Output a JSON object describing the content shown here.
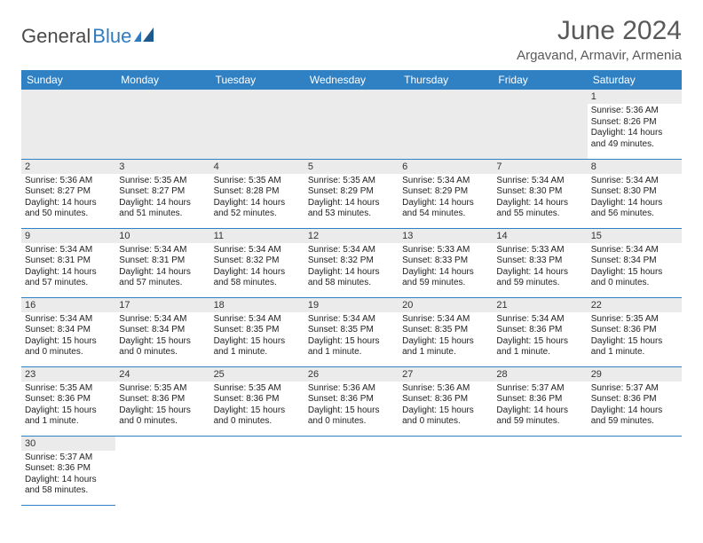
{
  "logo": {
    "dark": "General",
    "blue": "Blue"
  },
  "title": "June 2024",
  "location": "Argavand, Armavir, Armenia",
  "colors": {
    "header_bg": "#3081c3",
    "header_text": "#ffffff",
    "daynum_bg": "#ebebeb",
    "border": "#3081c3",
    "title_color": "#595959",
    "logo_blue": "#2f7bbf",
    "logo_dark": "#4a4a4a"
  },
  "day_headers": [
    "Sunday",
    "Monday",
    "Tuesday",
    "Wednesday",
    "Thursday",
    "Friday",
    "Saturday"
  ],
  "weeks": [
    [
      null,
      null,
      null,
      null,
      null,
      null,
      {
        "n": "1",
        "sr": "5:36 AM",
        "ss": "8:26 PM",
        "dl": "14 hours and 49 minutes."
      }
    ],
    [
      {
        "n": "2",
        "sr": "5:36 AM",
        "ss": "8:27 PM",
        "dl": "14 hours and 50 minutes."
      },
      {
        "n": "3",
        "sr": "5:35 AM",
        "ss": "8:27 PM",
        "dl": "14 hours and 51 minutes."
      },
      {
        "n": "4",
        "sr": "5:35 AM",
        "ss": "8:28 PM",
        "dl": "14 hours and 52 minutes."
      },
      {
        "n": "5",
        "sr": "5:35 AM",
        "ss": "8:29 PM",
        "dl": "14 hours and 53 minutes."
      },
      {
        "n": "6",
        "sr": "5:34 AM",
        "ss": "8:29 PM",
        "dl": "14 hours and 54 minutes."
      },
      {
        "n": "7",
        "sr": "5:34 AM",
        "ss": "8:30 PM",
        "dl": "14 hours and 55 minutes."
      },
      {
        "n": "8",
        "sr": "5:34 AM",
        "ss": "8:30 PM",
        "dl": "14 hours and 56 minutes."
      }
    ],
    [
      {
        "n": "9",
        "sr": "5:34 AM",
        "ss": "8:31 PM",
        "dl": "14 hours and 57 minutes."
      },
      {
        "n": "10",
        "sr": "5:34 AM",
        "ss": "8:31 PM",
        "dl": "14 hours and 57 minutes."
      },
      {
        "n": "11",
        "sr": "5:34 AM",
        "ss": "8:32 PM",
        "dl": "14 hours and 58 minutes."
      },
      {
        "n": "12",
        "sr": "5:34 AM",
        "ss": "8:32 PM",
        "dl": "14 hours and 58 minutes."
      },
      {
        "n": "13",
        "sr": "5:33 AM",
        "ss": "8:33 PM",
        "dl": "14 hours and 59 minutes."
      },
      {
        "n": "14",
        "sr": "5:33 AM",
        "ss": "8:33 PM",
        "dl": "14 hours and 59 minutes."
      },
      {
        "n": "15",
        "sr": "5:34 AM",
        "ss": "8:34 PM",
        "dl": "15 hours and 0 minutes."
      }
    ],
    [
      {
        "n": "16",
        "sr": "5:34 AM",
        "ss": "8:34 PM",
        "dl": "15 hours and 0 minutes."
      },
      {
        "n": "17",
        "sr": "5:34 AM",
        "ss": "8:34 PM",
        "dl": "15 hours and 0 minutes."
      },
      {
        "n": "18",
        "sr": "5:34 AM",
        "ss": "8:35 PM",
        "dl": "15 hours and 1 minute."
      },
      {
        "n": "19",
        "sr": "5:34 AM",
        "ss": "8:35 PM",
        "dl": "15 hours and 1 minute."
      },
      {
        "n": "20",
        "sr": "5:34 AM",
        "ss": "8:35 PM",
        "dl": "15 hours and 1 minute."
      },
      {
        "n": "21",
        "sr": "5:34 AM",
        "ss": "8:36 PM",
        "dl": "15 hours and 1 minute."
      },
      {
        "n": "22",
        "sr": "5:35 AM",
        "ss": "8:36 PM",
        "dl": "15 hours and 1 minute."
      }
    ],
    [
      {
        "n": "23",
        "sr": "5:35 AM",
        "ss": "8:36 PM",
        "dl": "15 hours and 1 minute."
      },
      {
        "n": "24",
        "sr": "5:35 AM",
        "ss": "8:36 PM",
        "dl": "15 hours and 0 minutes."
      },
      {
        "n": "25",
        "sr": "5:35 AM",
        "ss": "8:36 PM",
        "dl": "15 hours and 0 minutes."
      },
      {
        "n": "26",
        "sr": "5:36 AM",
        "ss": "8:36 PM",
        "dl": "15 hours and 0 minutes."
      },
      {
        "n": "27",
        "sr": "5:36 AM",
        "ss": "8:36 PM",
        "dl": "15 hours and 0 minutes."
      },
      {
        "n": "28",
        "sr": "5:37 AM",
        "ss": "8:36 PM",
        "dl": "14 hours and 59 minutes."
      },
      {
        "n": "29",
        "sr": "5:37 AM",
        "ss": "8:36 PM",
        "dl": "14 hours and 59 minutes."
      }
    ],
    [
      {
        "n": "30",
        "sr": "5:37 AM",
        "ss": "8:36 PM",
        "dl": "14 hours and 58 minutes."
      },
      null,
      null,
      null,
      null,
      null,
      null
    ]
  ],
  "labels": {
    "sunrise": "Sunrise:",
    "sunset": "Sunset:",
    "daylight": "Daylight:"
  }
}
